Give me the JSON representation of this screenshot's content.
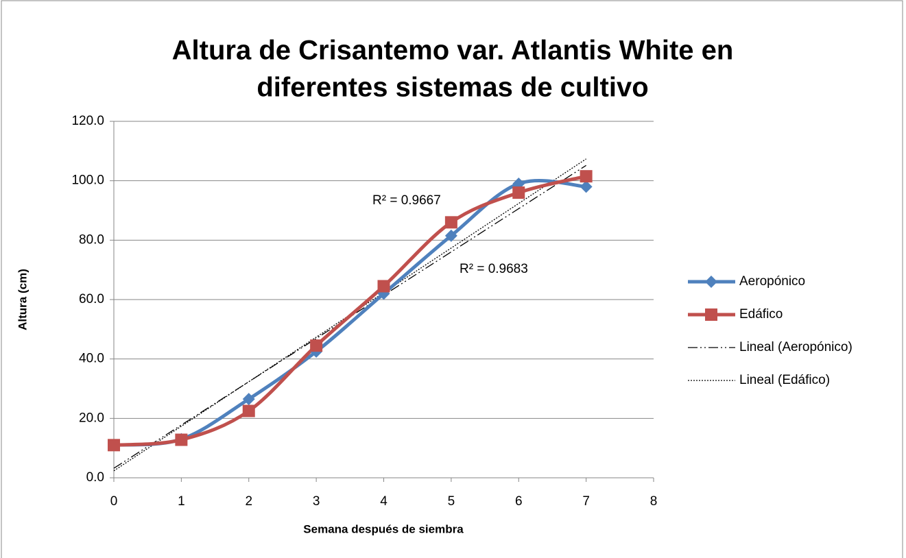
{
  "chart_data": {
    "type": "line",
    "title": [
      "Altura de Crisantemo var. Atlantis White  en",
      "diferentes sistemas de cultivo"
    ],
    "x_label": "Semana después de siembra",
    "y_label": "Altura (cm)",
    "x": [
      0,
      1,
      2,
      3,
      4,
      5,
      6,
      7
    ],
    "series": [
      {
        "name": "Aeropónico",
        "color": "#4f81bd",
        "marker": "diamond",
        "values": [
          11.0,
          13.0,
          26.5,
          42.5,
          62.0,
          81.5,
          99.0,
          98.0
        ]
      },
      {
        "name": "Edáfico",
        "color": "#c0504d",
        "marker": "square",
        "values": [
          11.0,
          12.8,
          22.5,
          44.5,
          64.5,
          86.0,
          96.0,
          101.5
        ]
      }
    ],
    "trendlines": [
      {
        "name": "Lineal (Aeropónico)",
        "series": 0,
        "dash": "dashdot",
        "color": "#000000"
      },
      {
        "name": "Lineal (Edáfico)",
        "series": 1,
        "dash": "dot",
        "color": "#000000"
      }
    ],
    "annotations": [
      "R² = 0.9667",
      "R² = 0.9683"
    ],
    "xlim": [
      0,
      8
    ],
    "xticks": [
      0,
      1,
      2,
      3,
      4,
      5,
      6,
      7,
      8
    ],
    "ylim": [
      0,
      120
    ],
    "yticks": [
      {
        "value": 0,
        "label": "0.0"
      },
      {
        "value": 20,
        "label": "20.0"
      },
      {
        "value": 40,
        "label": "40.0"
      },
      {
        "value": 60,
        "label": "60.0"
      },
      {
        "value": 80,
        "label": "80.0"
      },
      {
        "value": 100,
        "label": "100.0"
      },
      {
        "value": 120,
        "label": "120.0"
      }
    ],
    "grid": true,
    "legend": "right"
  }
}
